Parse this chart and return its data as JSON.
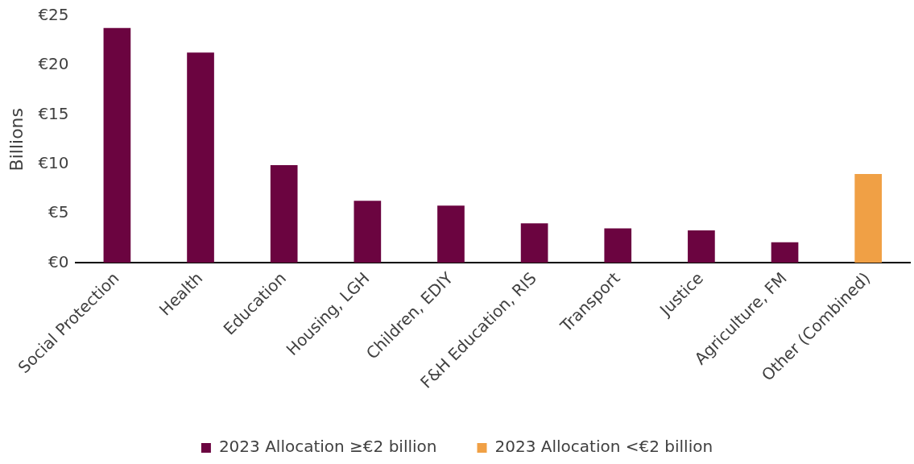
{
  "chart_data": {
    "type": "bar",
    "ylabel": "Billions",
    "categories": [
      "Social Protection",
      "Health",
      "Education",
      "Housing, LGH",
      "Children, EDIY",
      "F&H Education, RIS",
      "Transport",
      "Justice",
      "Agriculture, FM",
      "Other (Combined)"
    ],
    "series": [
      {
        "name": "2023 Allocation ≥€2 billion",
        "color": "#6b0440",
        "values": [
          23.8,
          21.3,
          9.9,
          6.3,
          5.8,
          4.0,
          3.5,
          3.3,
          2.1,
          null
        ]
      },
      {
        "name": "2023 Allocation <€2 billion",
        "color": "#f0a045",
        "values": [
          null,
          null,
          null,
          null,
          null,
          null,
          null,
          null,
          null,
          9.0
        ]
      }
    ],
    "ylim": [
      0,
      25
    ],
    "yticks": [
      {
        "value": 0,
        "label": "€0"
      },
      {
        "value": 5,
        "label": "€5"
      },
      {
        "value": 10,
        "label": "€10"
      },
      {
        "value": 15,
        "label": "€15"
      },
      {
        "value": 20,
        "label": "€20"
      },
      {
        "value": 25,
        "label": "€25"
      }
    ],
    "grid": false,
    "legend": "bottom"
  }
}
